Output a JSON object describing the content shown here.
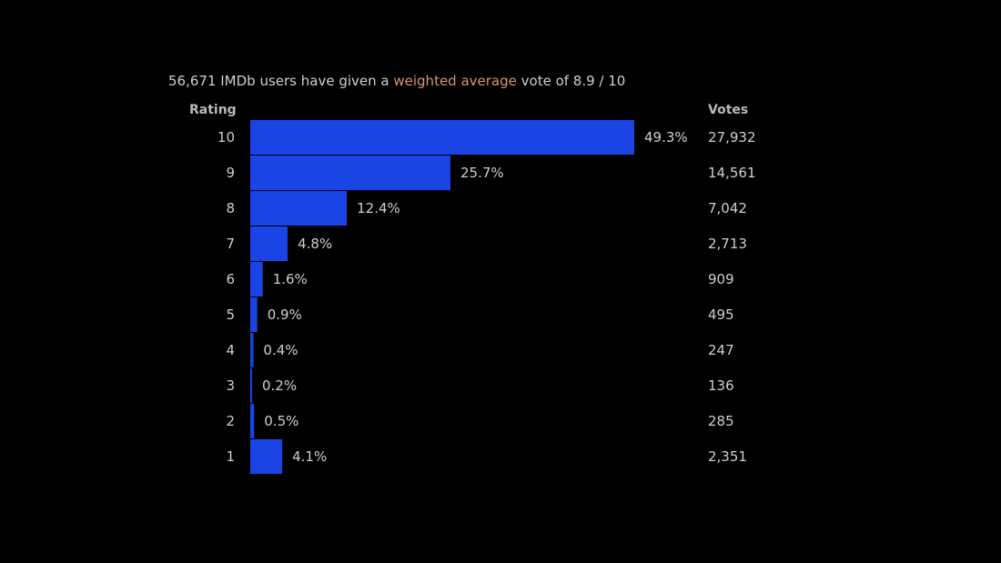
{
  "summary": {
    "prefix": "56,671 IMDb users have given a ",
    "link_text": "weighted average",
    "suffix": " vote of 8.9 / 10"
  },
  "headers": {
    "rating": "Rating",
    "votes": "Votes"
  },
  "colors": {
    "bar": "#1a44e3",
    "background": "#000000",
    "text": "#cfcfcf",
    "link": "#d7956a"
  },
  "chart_data": {
    "type": "bar",
    "orientation": "horizontal",
    "categories": [
      "10",
      "9",
      "8",
      "7",
      "6",
      "5",
      "4",
      "3",
      "2",
      "1"
    ],
    "values": [
      49.3,
      25.7,
      12.4,
      4.8,
      1.6,
      0.9,
      0.4,
      0.2,
      0.5,
      4.1
    ],
    "value_labels": [
      "49.3%",
      "25.7%",
      "12.4%",
      "4.8%",
      "1.6%",
      "0.9%",
      "0.4%",
      "0.2%",
      "0.5%",
      "4.1%"
    ],
    "votes": [
      "27,932",
      "14,561",
      "7,042",
      "2,713",
      "909",
      "495",
      "247",
      "136",
      "285",
      "2,351"
    ],
    "xlim": [
      0,
      49.3
    ],
    "grid": false,
    "legend": "none"
  }
}
